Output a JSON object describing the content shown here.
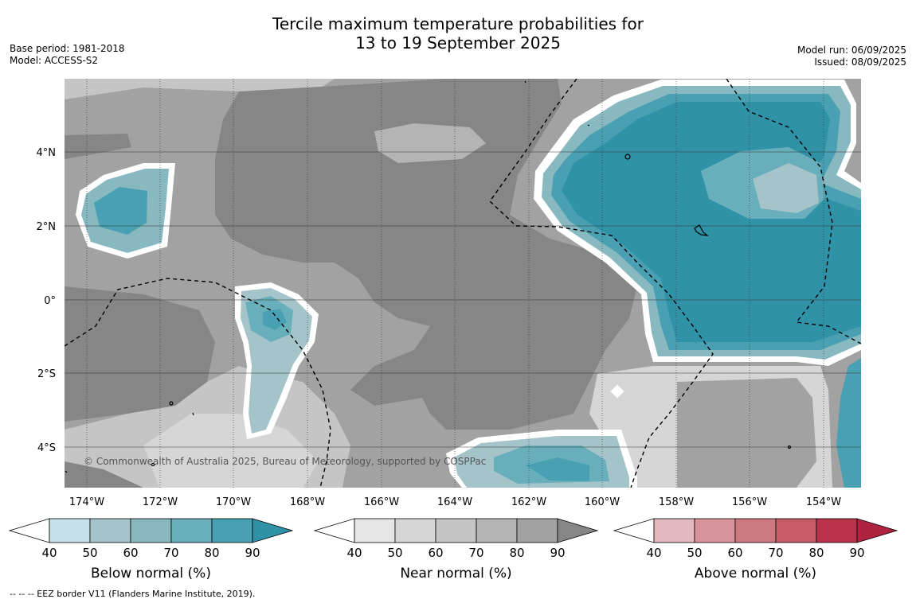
{
  "title_line1": "Tercile maximum temperature probabilities for",
  "title_line2": "13 to 19 September 2025",
  "base_period": "Base period: 1981-2018",
  "model": "Model: ACCESS-S2",
  "model_run": "Model run: 06/09/2025",
  "issued": "Issued: 08/09/2025",
  "copyright": "© Commonwealth of Australia 2025, Bureau of Meteorology, supported by COSPPac",
  "footnote": "-- -- -- EEZ border V11 (Flanders Marine Institute, 2019).",
  "lat_labels": [
    "4°N",
    "2°N",
    "0°",
    "2°S",
    "4°S"
  ],
  "lon_labels": [
    "174°W",
    "172°W",
    "170°W",
    "168°W",
    "166°W",
    "164°W",
    "162°W",
    "160°W",
    "158°W",
    "156°W",
    "154°W"
  ],
  "colorbars": [
    {
      "label": "Below normal (%)",
      "ticks": [
        "40",
        "50",
        "60",
        "70",
        "80",
        "90"
      ],
      "colors": [
        "#c6e1e7",
        "#a5c4c9",
        "#88b8c0",
        "#69aebb",
        "#48a0b2",
        "#2f92a6"
      ]
    },
    {
      "label": "Near normal (%)",
      "ticks": [
        "40",
        "50",
        "60",
        "70",
        "80",
        "90"
      ],
      "colors": [
        "#e6e6e6",
        "#d6d6d6",
        "#c5c5c5",
        "#b4b4b4",
        "#a2a2a2",
        "#868686"
      ]
    },
    {
      "label": "Above normal (%)",
      "ticks": [
        "40",
        "50",
        "60",
        "70",
        "80",
        "90"
      ],
      "colors": [
        "#e3b8be",
        "#d8939d",
        "#cd7981",
        "#c55c68",
        "#bb334b",
        "#b02340"
      ]
    }
  ],
  "colors": {
    "below_dark": "#2f92a6",
    "near_dark": "#868686",
    "boundary": "#ffffff"
  }
}
